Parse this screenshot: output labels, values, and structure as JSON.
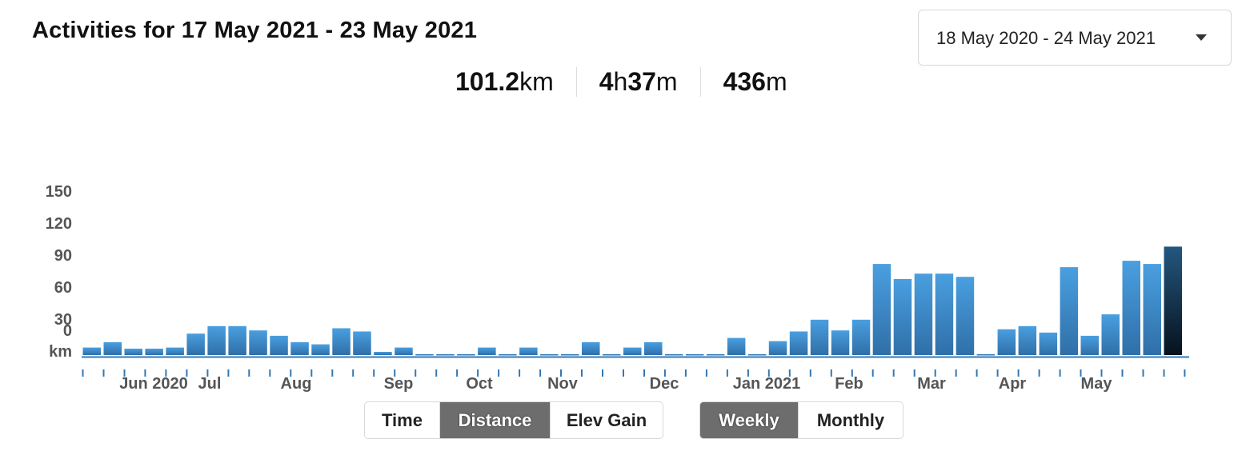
{
  "header": {
    "title": "Activities for 17 May 2021 - 23 May 2021",
    "date_range": "18 May 2020 - 24 May 2021",
    "dropdown_icon": "caret-down-icon"
  },
  "stats": [
    {
      "value": "101.2",
      "unit": "km"
    },
    {
      "value": "4",
      "unit": "h "
    },
    {
      "value": "37",
      "unit": "m"
    },
    {
      "value": "436",
      "unit": "m"
    }
  ],
  "metric_buttons": [
    {
      "label": "Time",
      "active": false
    },
    {
      "label": "Distance",
      "active": true
    },
    {
      "label": "Elev Gain",
      "active": false
    }
  ],
  "period_buttons": [
    {
      "label": "Weekly",
      "active": true
    },
    {
      "label": "Monthly",
      "active": false
    }
  ],
  "colors": {
    "bar_top": "#4a9fe0",
    "bar_bottom": "#2f6fa8",
    "selected_top": "#24577f",
    "selected_bottom": "#06121d",
    "axis": "#2f78b7",
    "active_button": "#6d6d6d"
  },
  "chart_data": {
    "type": "bar",
    "unit": "km",
    "y_ticks": [
      "150",
      "120",
      "90",
      "60",
      "30",
      "0"
    ],
    "ylim": [
      0,
      150
    ],
    "x_labels": [
      "Jun 2020",
      "Jul",
      "Aug",
      "Sep",
      "Oct",
      "Nov",
      "Dec",
      "Jan 2021",
      "Feb",
      "Mar",
      "Apr",
      "May"
    ],
    "values": [
      7,
      12,
      6,
      6,
      7,
      20,
      27,
      27,
      23,
      18,
      12,
      10,
      25,
      22,
      3,
      7,
      0,
      0,
      0,
      7,
      0,
      7,
      0,
      0,
      12,
      0,
      7,
      12,
      0,
      0,
      0,
      16,
      0,
      13,
      22,
      33,
      23,
      33,
      85,
      71,
      76,
      76,
      73,
      0,
      24,
      27,
      21,
      82,
      18,
      38,
      88,
      85,
      101.2
    ],
    "selected_index": 52
  }
}
